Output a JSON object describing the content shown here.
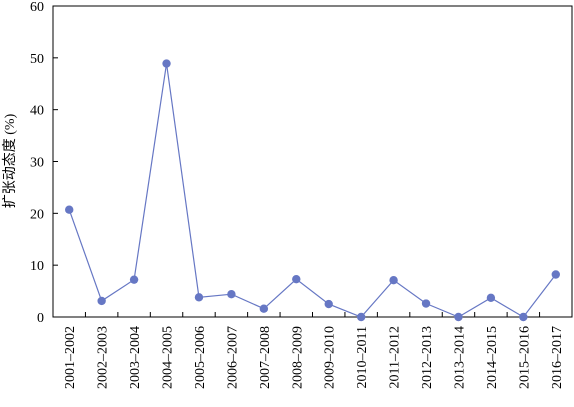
{
  "chart_data": {
    "type": "line",
    "title": "",
    "xlabel": "",
    "ylabel": "扩张动态度 (%)",
    "ylim": [
      0,
      60
    ],
    "yticks": [
      0,
      10,
      20,
      30,
      40,
      50,
      60
    ],
    "grid": false,
    "legend": "none",
    "colors": {
      "line": "#6677c4",
      "marker": "#6677c4",
      "axis": "#000000"
    },
    "categories": [
      "2001–2002",
      "2002–2003",
      "2003–2004",
      "2004–2005",
      "2005–2006",
      "2006–2007",
      "2007–2008",
      "2008–2009",
      "2009–2010",
      "2010–2011",
      "2011–2012",
      "2012–2013",
      "2013–2014",
      "2014–2015",
      "2015–2016",
      "2016–2017"
    ],
    "series": [
      {
        "values": [
          20.7,
          3.1,
          7.2,
          48.9,
          3.8,
          4.4,
          1.6,
          7.3,
          2.5,
          0.0,
          7.1,
          2.6,
          0.0,
          3.7,
          0.0,
          8.2
        ]
      }
    ]
  }
}
